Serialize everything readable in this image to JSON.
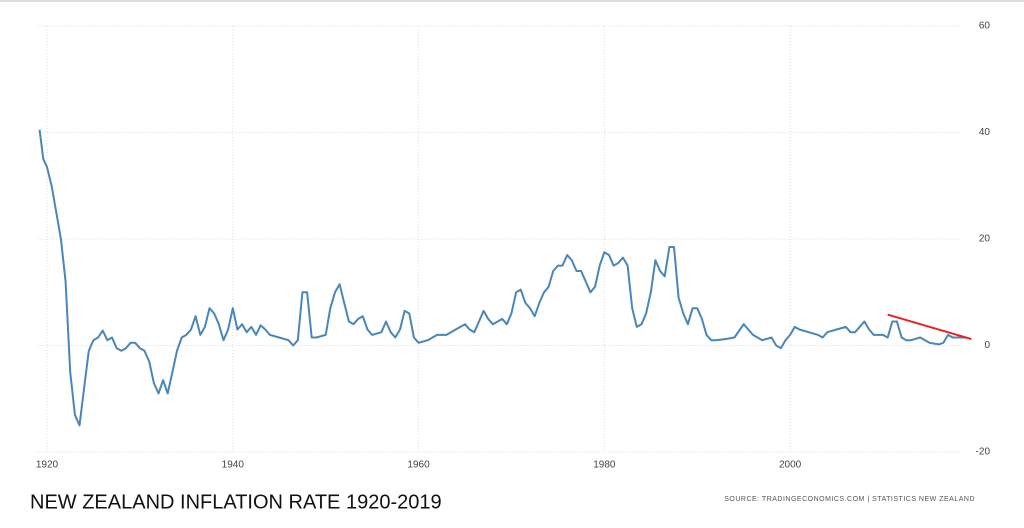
{
  "chart_data": {
    "type": "line",
    "title": "NEW ZEALAND INFLATION RATE 1920-2019",
    "source": "SOURCE: TRADINGECONOMICS.COM | STATISTICS NEW ZEALAND",
    "xlim": [
      1919,
      2020
    ],
    "xticks": [
      1920,
      1940,
      1960,
      1980,
      2000
    ],
    "ylim": [
      -20,
      60
    ],
    "yticks": [
      -20,
      0,
      20,
      40,
      60
    ],
    "grid": true,
    "series": [
      {
        "name": "Inflation rate",
        "color": "#4a86b8",
        "x": [
          1919.2,
          1919.6,
          1920,
          1920.5,
          1921,
          1921.5,
          1922,
          1922.5,
          1923,
          1923.5,
          1924,
          1924.5,
          1925,
          1925.5,
          1926,
          1926.5,
          1927,
          1927.5,
          1928,
          1928.5,
          1929,
          1929.5,
          1930,
          1930.5,
          1931,
          1931.5,
          1932,
          1932.5,
          1933,
          1933.5,
          1934,
          1934.5,
          1935,
          1935.5,
          1936,
          1936.5,
          1937,
          1937.5,
          1938,
          1938.5,
          1939,
          1939.5,
          1940,
          1940.5,
          1941,
          1941.5,
          1942,
          1942.5,
          1943,
          1943.5,
          1944,
          1945,
          1946,
          1946.5,
          1947,
          1947.5,
          1948,
          1948.5,
          1949,
          1950,
          1950.5,
          1951,
          1951.5,
          1952,
          1952.5,
          1953,
          1953.5,
          1954,
          1954.5,
          1955,
          1956,
          1956.5,
          1957,
          1957.5,
          1958,
          1958.5,
          1959,
          1959.5,
          1960,
          1961,
          1962,
          1963,
          1964,
          1965,
          1965.5,
          1966,
          1967,
          1967.5,
          1968,
          1969,
          1969.5,
          1970,
          1970.5,
          1971,
          1971.5,
          1972,
          1972.5,
          1973,
          1973.5,
          1974,
          1974.5,
          1975,
          1975.5,
          1976,
          1976.5,
          1977,
          1977.5,
          1978,
          1978.5,
          1979,
          1979.5,
          1980,
          1980.5,
          1981,
          1981.5,
          1982,
          1982.5,
          1983,
          1983.5,
          1984,
          1984.5,
          1985,
          1985.5,
          1986,
          1986.5,
          1987,
          1987.5,
          1988,
          1988.5,
          1989,
          1989.5,
          1990,
          1990.5,
          1991,
          1991.5,
          1992,
          1993,
          1994,
          1995,
          1995.5,
          1996,
          1997,
          1998,
          1998.5,
          1999,
          1999.5,
          2000,
          2000.5,
          2001,
          2002,
          2003,
          2003.5,
          2004,
          2005,
          2006,
          2006.5,
          2007,
          2008,
          2008.5,
          2009,
          2010,
          2010.5,
          2011,
          2011.5,
          2012,
          2012.5,
          2013,
          2014,
          2015,
          2016,
          2016.5,
          2017,
          2017.5,
          2018,
          2019
        ],
        "values": [
          40.5,
          35,
          33.5,
          30,
          25,
          20,
          12,
          -5,
          -13,
          -15,
          -8,
          -1,
          1,
          1.5,
          2.8,
          1,
          1.5,
          -0.5,
          -1,
          -0.5,
          0.5,
          0.5,
          -0.5,
          -1,
          -3,
          -7,
          -9,
          -6.5,
          -9,
          -5,
          -1,
          1.5,
          2,
          3,
          5.5,
          2,
          3.5,
          7,
          6,
          4,
          1,
          3,
          7,
          3,
          4,
          2.5,
          3.5,
          2,
          3.8,
          3,
          2,
          1.5,
          1,
          0,
          1,
          10,
          10,
          1.5,
          1.5,
          2,
          7,
          10,
          11.5,
          8,
          4.5,
          4,
          5,
          5.5,
          3,
          2,
          2.5,
          4.5,
          2.5,
          1.5,
          3,
          6.5,
          6,
          1.5,
          0.5,
          1,
          2,
          2,
          3,
          4,
          3,
          2.5,
          6.5,
          5,
          4,
          5,
          4,
          6,
          10,
          10.5,
          8,
          7,
          5.5,
          8,
          10,
          11,
          14,
          15,
          15,
          17,
          16,
          14,
          14,
          12,
          10,
          11,
          15,
          17.5,
          17,
          15,
          15.5,
          16.5,
          15,
          7,
          3.5,
          4,
          6,
          10,
          16,
          14,
          13,
          18.5,
          18.5,
          9,
          6,
          4,
          7,
          7,
          5,
          2,
          1,
          1,
          1.2,
          1.5,
          4,
          3,
          2,
          1,
          1.5,
          0,
          -0.5,
          1,
          2,
          3.5,
          3,
          2.5,
          2,
          1.5,
          2.5,
          3,
          3.5,
          2.5,
          2.5,
          4.5,
          3,
          2,
          2,
          1.5,
          4.5,
          4.5,
          1.5,
          1,
          1,
          1.5,
          0.5,
          0.2,
          0.5,
          2,
          1.5,
          1.5,
          1.5
        ]
      },
      {
        "name": "Trend",
        "color": "#e82020",
        "x": [
          2010.5,
          2019.5
        ],
        "values": [
          5.8,
          1.2
        ]
      }
    ]
  }
}
